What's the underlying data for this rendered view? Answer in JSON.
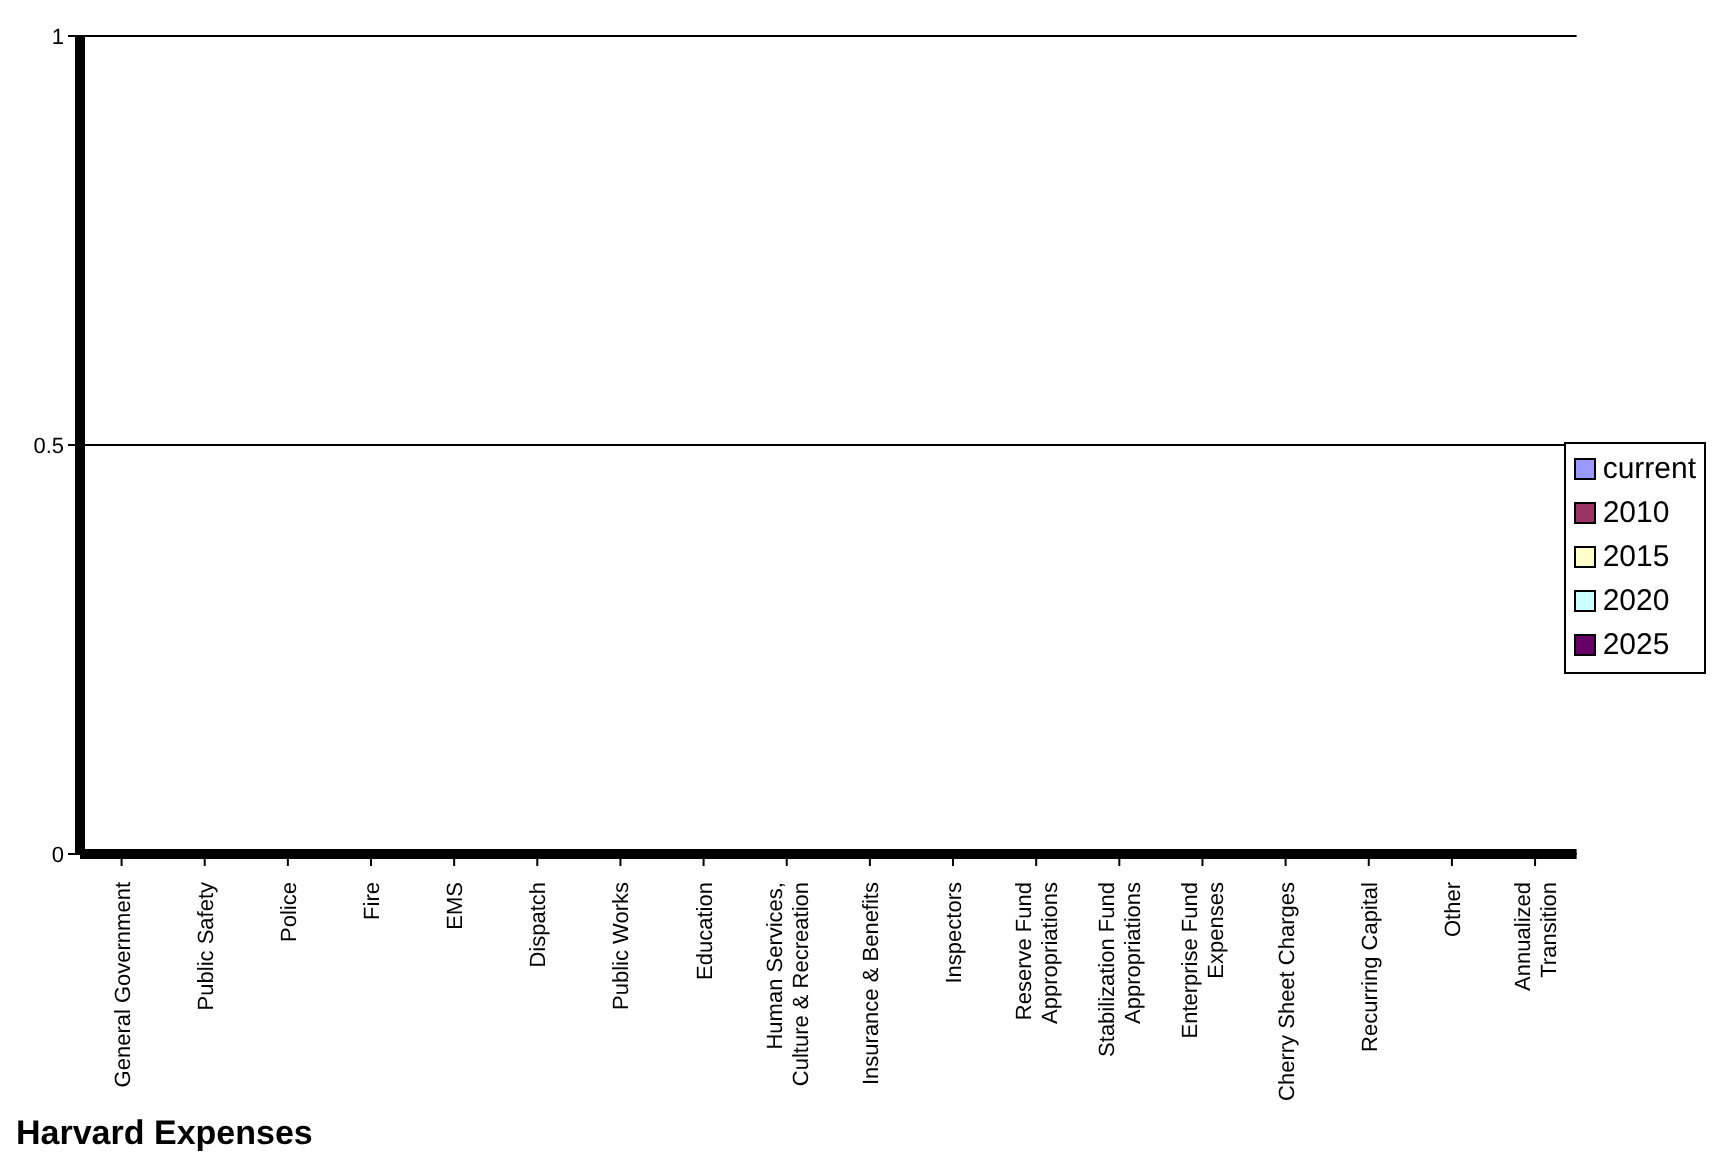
{
  "chart_data": {
    "type": "bar",
    "title": "Harvard Expenses",
    "categories": [
      "General Government",
      "Public Safety",
      "Police",
      "Fire",
      "EMS",
      "Dispatch",
      "Public Works",
      "Education",
      "Human Services, Culture & Recreation",
      "Insurance & Benefits",
      "Inspectors",
      "Reserve Fund Appropriations",
      "Stabilization Fund Appropriations",
      "Enterprise Fund Expenses",
      "Cherry Sheet Charges",
      "Recurring Capital",
      "Other",
      "Annualized Transition"
    ],
    "series": [
      {
        "name": "current",
        "color": "#9999ff",
        "values": [
          0,
          0,
          0,
          0,
          0,
          0,
          0,
          0,
          0,
          0,
          0,
          0,
          0,
          0,
          0,
          0,
          0,
          0
        ]
      },
      {
        "name": "2010",
        "color": "#993366",
        "values": [
          0,
          0,
          0,
          0,
          0,
          0,
          0,
          0,
          0,
          0,
          0,
          0,
          0,
          0,
          0,
          0,
          0,
          0
        ]
      },
      {
        "name": "2015",
        "color": "#ffffcc",
        "values": [
          0,
          0,
          0,
          0,
          0,
          0,
          0,
          0,
          0,
          0,
          0,
          0,
          0,
          0,
          0,
          0,
          0,
          0
        ]
      },
      {
        "name": "2020",
        "color": "#ccffff",
        "values": [
          0,
          0,
          0,
          0,
          0,
          0,
          0,
          0,
          0,
          0,
          0,
          0,
          0,
          0,
          0,
          0,
          0,
          0
        ]
      },
      {
        "name": "2025",
        "color": "#660066",
        "values": [
          0,
          0,
          0,
          0,
          0,
          0,
          0,
          0,
          0,
          0,
          0,
          0,
          0,
          0,
          0,
          0,
          0,
          0
        ]
      }
    ],
    "ylim": [
      0,
      1
    ],
    "yticks": [
      0,
      0.5,
      1
    ],
    "grid": "y",
    "legend": "right"
  }
}
